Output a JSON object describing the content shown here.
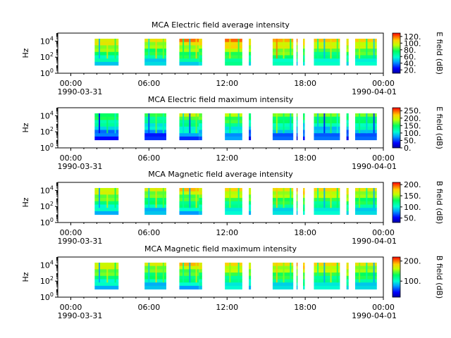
{
  "chart_data": [
    {
      "type": "heatmap",
      "title": "MCA  Electric field average intensity",
      "ylabel": "Hz",
      "ylim": [
        1,
        100000
      ],
      "yscale": "log",
      "yticks": [
        {
          "exp": "0",
          "value": 1
        },
        {
          "exp": "2",
          "value": 100
        },
        {
          "exp": "4",
          "value": 10000
        }
      ],
      "freq_range": [
        10,
        20000
      ],
      "colorbar": {
        "label": "E field (dB)",
        "range": [
          10,
          130
        ],
        "ticks": [
          "20.",
          "40.",
          "60.",
          "80.",
          "100.",
          "120."
        ],
        "tick_values": [
          20,
          40,
          60,
          80,
          100,
          120
        ]
      },
      "level": 0.55,
      "bands": [
        {
          "t0": "01:50",
          "t1": "03:40",
          "level": 0.58
        },
        {
          "t0": "05:40",
          "t1": "07:20",
          "level": 0.55
        },
        {
          "t0": "08:20",
          "t1": "09:50",
          "level": 0.62
        },
        {
          "t0": "09:50",
          "t1": "10:05",
          "level": 0.6
        },
        {
          "t0": "11:50",
          "t1": "13:10",
          "level": 0.66
        },
        {
          "t0": "13:40",
          "t1": "13:50",
          "level": 0.6
        },
        {
          "t0": "15:30",
          "t1": "17:05",
          "level": 0.63
        },
        {
          "t0": "17:20",
          "t1": "17:25",
          "level": 0.6
        },
        {
          "t0": "17:50",
          "t1": "17:58",
          "level": 0.6
        },
        {
          "t0": "18:40",
          "t1": "20:40",
          "level": 0.58
        },
        {
          "t0": "21:10",
          "t1": "21:20",
          "level": 0.6
        },
        {
          "t0": "21:50",
          "t1": "23:30",
          "level": 0.6
        }
      ]
    },
    {
      "type": "heatmap",
      "title": "MCA  Electric field maximum intensity",
      "ylabel": "Hz",
      "ylim": [
        1,
        100000
      ],
      "yscale": "log",
      "yticks": [
        {
          "exp": "0",
          "value": 1
        },
        {
          "exp": "2",
          "value": 100
        },
        {
          "exp": "4",
          "value": 10000
        }
      ],
      "freq_range": [
        10,
        20000
      ],
      "colorbar": {
        "label": "E field (dB)",
        "range": [
          0,
          270
        ],
        "ticks": [
          "0.",
          "50.",
          "100.",
          "150.",
          "200.",
          "250."
        ],
        "tick_values": [
          0,
          50,
          100,
          150,
          200,
          250
        ]
      },
      "level": 0.4,
      "bands": [
        {
          "t0": "01:50",
          "t1": "03:40",
          "level": 0.38
        },
        {
          "t0": "05:40",
          "t1": "07:20",
          "level": 0.36
        },
        {
          "t0": "08:20",
          "t1": "09:50",
          "level": 0.45
        },
        {
          "t0": "09:50",
          "t1": "10:05",
          "level": 0.42
        },
        {
          "t0": "11:50",
          "t1": "13:10",
          "level": 0.45
        },
        {
          "t0": "13:40",
          "t1": "13:50",
          "level": 0.35
        },
        {
          "t0": "15:30",
          "t1": "17:05",
          "level": 0.42
        },
        {
          "t0": "17:20",
          "t1": "17:25",
          "level": 0.35
        },
        {
          "t0": "17:50",
          "t1": "17:58",
          "level": 0.35
        },
        {
          "t0": "18:40",
          "t1": "20:40",
          "level": 0.4
        },
        {
          "t0": "21:10",
          "t1": "21:20",
          "level": 0.35
        },
        {
          "t0": "21:50",
          "t1": "23:30",
          "level": 0.42
        }
      ]
    },
    {
      "type": "heatmap",
      "title": "MCA  Magnetic field average intensity",
      "ylabel": "Hz",
      "ylim": [
        1,
        100000
      ],
      "yscale": "log",
      "yticks": [
        {
          "exp": "0",
          "value": 1
        },
        {
          "exp": "2",
          "value": 100
        },
        {
          "exp": "4",
          "value": 10000
        }
      ],
      "freq_range": [
        10,
        20000
      ],
      "colorbar": {
        "label": "B field (dB)",
        "range": [
          30,
          210
        ],
        "ticks": [
          "50.",
          "100.",
          "150.",
          "200."
        ],
        "tick_values": [
          50,
          100,
          150,
          200
        ]
      },
      "level": 0.55,
      "bands": [
        {
          "t0": "01:50",
          "t1": "03:40",
          "level": 0.55
        },
        {
          "t0": "05:40",
          "t1": "07:20",
          "level": 0.52
        },
        {
          "t0": "08:20",
          "t1": "09:50",
          "level": 0.56
        },
        {
          "t0": "09:50",
          "t1": "10:05",
          "level": 0.55
        },
        {
          "t0": "11:50",
          "t1": "13:10",
          "level": 0.56
        },
        {
          "t0": "13:40",
          "t1": "13:50",
          "level": 0.55
        },
        {
          "t0": "15:30",
          "t1": "17:05",
          "level": 0.56
        },
        {
          "t0": "17:20",
          "t1": "17:25",
          "level": 0.6
        },
        {
          "t0": "17:50",
          "t1": "17:58",
          "level": 0.62
        },
        {
          "t0": "18:40",
          "t1": "20:40",
          "level": 0.56
        },
        {
          "t0": "21:10",
          "t1": "21:20",
          "level": 0.6
        },
        {
          "t0": "21:50",
          "t1": "23:30",
          "level": 0.55
        }
      ]
    },
    {
      "type": "heatmap",
      "title": "MCA  Magnetic field maximum intensity",
      "ylabel": "Hz",
      "ylim": [
        1,
        100000
      ],
      "yscale": "log",
      "yticks": [
        {
          "exp": "0",
          "value": 1
        },
        {
          "exp": "2",
          "value": 100
        },
        {
          "exp": "4",
          "value": 10000
        }
      ],
      "freq_range": [
        10,
        20000
      ],
      "colorbar": {
        "label": "B field (dB)",
        "range": [
          20,
          220
        ],
        "ticks": [
          "100.",
          "200."
        ],
        "tick_values": [
          100,
          200
        ]
      },
      "level": 0.55,
      "bands": [
        {
          "t0": "01:50",
          "t1": "03:40",
          "level": 0.55
        },
        {
          "t0": "05:40",
          "t1": "07:20",
          "level": 0.52
        },
        {
          "t0": "08:20",
          "t1": "09:50",
          "level": 0.56
        },
        {
          "t0": "09:50",
          "t1": "10:05",
          "level": 0.55
        },
        {
          "t0": "11:50",
          "t1": "13:10",
          "level": 0.56
        },
        {
          "t0": "13:40",
          "t1": "13:50",
          "level": 0.55
        },
        {
          "t0": "15:30",
          "t1": "17:05",
          "level": 0.56
        },
        {
          "t0": "17:20",
          "t1": "17:25",
          "level": 0.6
        },
        {
          "t0": "17:50",
          "t1": "17:58",
          "level": 0.62
        },
        {
          "t0": "18:40",
          "t1": "20:40",
          "level": 0.56
        },
        {
          "t0": "21:10",
          "t1": "21:20",
          "level": 0.6
        },
        {
          "t0": "21:50",
          "t1": "23:30",
          "level": 0.55
        }
      ]
    }
  ],
  "xaxis": {
    "range": [
      "1990-03-31 00:00",
      "1990-04-01 00:00"
    ],
    "extent_hours": [
      -1,
      24
    ],
    "tick_labels": [
      "00:00",
      "06:00",
      "12:00",
      "18:00",
      "00:00"
    ],
    "tick_hours": [
      0,
      6,
      12,
      18,
      24
    ],
    "minor_hours": [
      1,
      2,
      3,
      4,
      5,
      7,
      8,
      9,
      10,
      11,
      13,
      14,
      15,
      16,
      17,
      19,
      20,
      21,
      22,
      23
    ],
    "date_start": "1990-03-31",
    "date_end": "1990-04-01"
  }
}
